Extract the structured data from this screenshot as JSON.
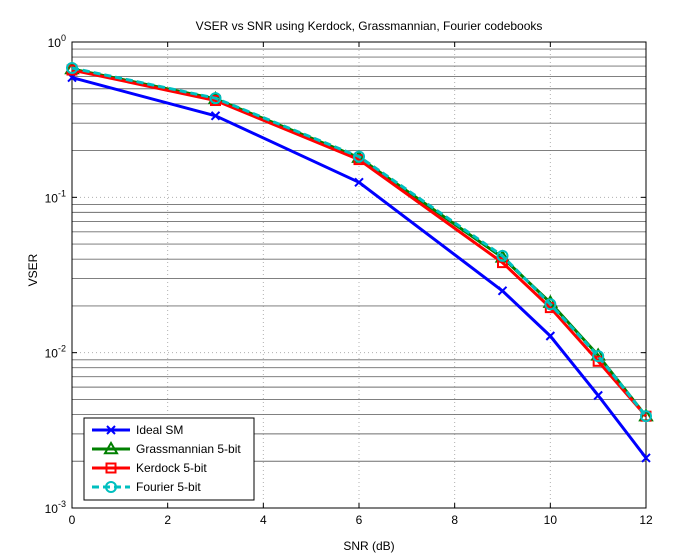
{
  "chart_data": {
    "type": "line",
    "title": "VSER vs SNR using Kerdock, Grassmannian, Fourier codebooks",
    "xlabel": "SNR (dB)",
    "ylabel": "VSER",
    "xlim": [
      0,
      12
    ],
    "ylim": [
      0.001,
      1
    ],
    "yscale": "log",
    "grid": true,
    "legend_position": "bottom-left",
    "x_ticks": [
      0,
      2,
      4,
      6,
      8,
      10,
      12
    ],
    "x_tick_labels": [
      "0",
      "2",
      "4",
      "6",
      "8",
      "10",
      "12"
    ],
    "y_ticks": [
      0.001,
      0.01,
      0.1,
      1
    ],
    "y_tick_labels": [
      {
        "base": "10",
        "exp": "-3"
      },
      {
        "base": "10",
        "exp": "-2"
      },
      {
        "base": "10",
        "exp": "-1"
      },
      {
        "base": "10",
        "exp": "0"
      }
    ],
    "x": [
      0,
      3,
      6,
      9,
      10,
      11,
      12
    ],
    "series": [
      {
        "name": "Ideal SM",
        "color": "#0000ff",
        "marker": "x",
        "dash": "solid",
        "values": [
          0.59,
          0.335,
          0.125,
          0.025,
          0.0128,
          0.0053,
          0.0021
        ]
      },
      {
        "name": "Grassmannian 5-bit",
        "color": "#008000",
        "marker": "triangle",
        "dash": "solid",
        "values": [
          0.67,
          0.43,
          0.18,
          0.041,
          0.021,
          0.0096,
          0.0039
        ]
      },
      {
        "name": "Kerdock 5-bit",
        "color": "#ff0000",
        "marker": "square",
        "dash": "solid",
        "values": [
          0.66,
          0.42,
          0.175,
          0.038,
          0.0195,
          0.0088,
          0.0039
        ]
      },
      {
        "name": "Fourier 5-bit",
        "color": "#00bfbf",
        "marker": "circle",
        "dash": "dashed",
        "values": [
          0.68,
          0.435,
          0.183,
          0.042,
          0.0205,
          0.0095,
          0.0039
        ]
      }
    ]
  }
}
